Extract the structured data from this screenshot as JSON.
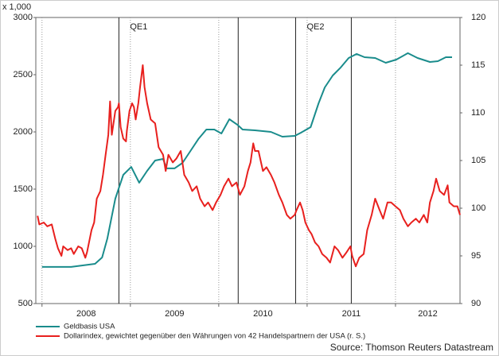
{
  "chart_data": {
    "type": "line",
    "y_unit_label": "x 1,000",
    "source": "Source: Thomson Reuters Datastream",
    "xlim": [
      2007.93,
      2012.73
    ],
    "xticks": [
      2008,
      2009,
      2010,
      2011,
      2012
    ],
    "ylim": [
      500,
      3000
    ],
    "yticks": [
      500,
      1000,
      1500,
      2000,
      2500,
      3000
    ],
    "y2lim": [
      90,
      120
    ],
    "y2ticks": [
      90,
      95,
      100,
      105,
      110,
      115,
      120
    ],
    "grid": true,
    "events": [
      {
        "x": 2008.87,
        "label": "QE1"
      },
      {
        "x": 2010.22
      },
      {
        "x": 2010.87,
        "label": "QE2"
      },
      {
        "x": 2011.5
      }
    ],
    "series": [
      {
        "name": "Geldbasis USA",
        "color": "#1a8c8c",
        "x": [
          2008.0,
          2008.33,
          2008.6,
          2008.68,
          2008.74,
          2008.83,
          2008.92,
          2009.01,
          2009.1,
          2009.19,
          2009.28,
          2009.37,
          2009.41,
          2009.5,
          2009.59,
          2009.68,
          2009.77,
          2009.86,
          2009.95,
          2010.03,
          2010.12,
          2010.21,
          2010.27,
          2010.41,
          2010.59,
          2010.72,
          2010.86,
          2010.93,
          2011.04,
          2011.13,
          2011.2,
          2011.29,
          2011.38,
          2011.47,
          2011.56,
          2011.65,
          2011.77,
          2011.89,
          2012.01,
          2012.14,
          2012.25,
          2012.39,
          2012.48,
          2012.57,
          2012.64
        ],
        "values": [
          820,
          820,
          847,
          903,
          1069,
          1417,
          1625,
          1694,
          1556,
          1660,
          1750,
          1764,
          1681,
          1681,
          1729,
          1833,
          1938,
          2021,
          2021,
          1986,
          2111,
          2063,
          2021,
          2014,
          2000,
          1958,
          1965,
          1993,
          2042,
          2250,
          2389,
          2493,
          2563,
          2646,
          2681,
          2653,
          2646,
          2604,
          2632,
          2688,
          2646,
          2611,
          2618,
          2653,
          2653
        ]
      },
      {
        "name": "Dollarindex, gewichtet gegenüber den Währungen von 42 Handelspartnern der USA (r. S.)",
        "color": "#e8201e",
        "axis": "y2",
        "x": [
          2007.95,
          2007.97,
          2008.02,
          2008.06,
          2008.11,
          2008.15,
          2008.18,
          2008.22,
          2008.24,
          2008.29,
          2008.33,
          2008.36,
          2008.41,
          2008.45,
          2008.49,
          2008.51,
          2008.56,
          2008.59,
          2008.62,
          2008.66,
          2008.69,
          2008.72,
          2008.75,
          2008.77,
          2008.79,
          2008.83,
          2008.86,
          2008.87,
          2008.89,
          2008.92,
          2008.95,
          2008.96,
          2008.99,
          2009.02,
          2009.04,
          2009.06,
          2009.09,
          2009.11,
          2009.14,
          2009.16,
          2009.19,
          2009.23,
          2009.28,
          2009.32,
          2009.37,
          2009.4,
          2009.43,
          2009.48,
          2009.52,
          2009.57,
          2009.61,
          2009.66,
          2009.7,
          2009.75,
          2009.79,
          2009.84,
          2009.88,
          2009.93,
          2009.97,
          2010.02,
          2010.06,
          2010.11,
          2010.15,
          2010.2,
          2010.24,
          2010.29,
          2010.33,
          2010.36,
          2010.39,
          2010.41,
          2010.45,
          2010.5,
          2010.54,
          2010.59,
          2010.63,
          2010.68,
          2010.72,
          2010.77,
          2010.81,
          2010.86,
          2010.88,
          2010.92,
          2010.95,
          2010.98,
          2011.02,
          2011.05,
          2011.09,
          2011.13,
          2011.17,
          2011.22,
          2011.26,
          2011.31,
          2011.35,
          2011.4,
          2011.44,
          2011.49,
          2011.51,
          2011.55,
          2011.59,
          2011.64,
          2011.68,
          2011.73,
          2011.77,
          2011.82,
          2011.86,
          2011.91,
          2011.95,
          2012.0,
          2012.05,
          2012.09,
          2012.14,
          2012.18,
          2012.23,
          2012.27,
          2012.32,
          2012.36,
          2012.39,
          2012.43,
          2012.46,
          2012.5,
          2012.55,
          2012.59,
          2012.61,
          2012.66,
          2012.7,
          2012.73
        ],
        "values": [
          99.2,
          98.3,
          98.5,
          98.1,
          98.3,
          96.8,
          95.8,
          95.0,
          96.0,
          95.6,
          95.8,
          95.2,
          96.0,
          95.8,
          94.8,
          95.4,
          97.7,
          98.5,
          101.0,
          101.8,
          103.5,
          105.6,
          107.7,
          111.2,
          107.7,
          110.2,
          110.6,
          111.0,
          108.5,
          107.3,
          107.0,
          108.1,
          110.2,
          111.0,
          110.6,
          109.3,
          111.0,
          112.7,
          115.0,
          112.7,
          111.0,
          109.3,
          108.9,
          106.4,
          105.6,
          103.9,
          105.6,
          104.8,
          105.2,
          106.0,
          103.5,
          102.7,
          101.8,
          102.3,
          101.0,
          100.2,
          100.6,
          99.8,
          100.6,
          101.4,
          102.3,
          103.1,
          102.3,
          102.7,
          101.4,
          102.3,
          103.9,
          104.8,
          106.8,
          106.0,
          106.0,
          103.9,
          104.3,
          103.5,
          102.7,
          101.4,
          100.6,
          99.3,
          98.9,
          99.3,
          99.8,
          100.6,
          99.8,
          98.5,
          97.7,
          97.3,
          96.4,
          96.0,
          95.2,
          94.8,
          94.3,
          96.0,
          95.6,
          94.8,
          95.3,
          96.0,
          95.0,
          93.9,
          94.8,
          95.2,
          97.7,
          99.3,
          101.0,
          99.8,
          98.9,
          100.6,
          100.6,
          100.2,
          99.8,
          98.9,
          98.1,
          98.5,
          98.9,
          98.5,
          99.3,
          98.5,
          100.6,
          101.8,
          103.1,
          101.8,
          101.4,
          102.4,
          100.6,
          100.2,
          100.2,
          99.3
        ]
      }
    ]
  }
}
